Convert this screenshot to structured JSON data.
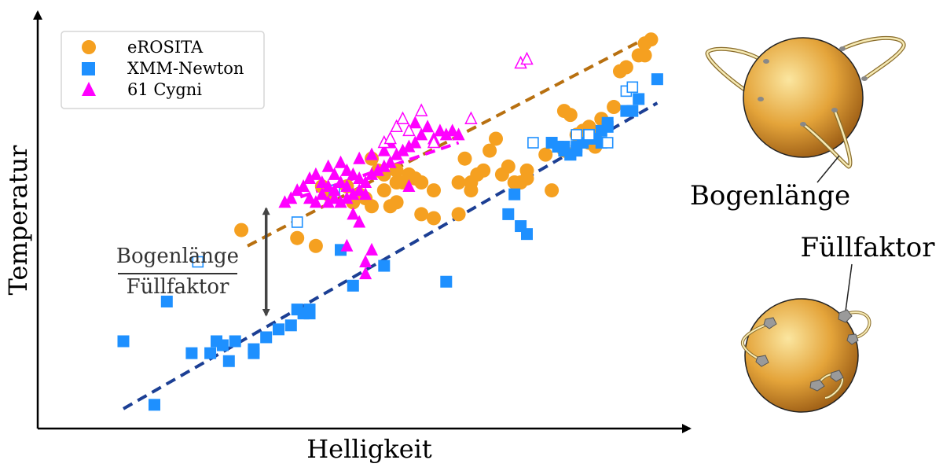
{
  "chart_data": {
    "type": "scatter",
    "title": "",
    "xlabel": "Helligkeit",
    "ylabel": "Temperatur",
    "axis_ticks": "none",
    "xlim": [
      0,
      100
    ],
    "ylim": [
      0,
      100
    ],
    "grid": false,
    "legend": {
      "placement": "top-left",
      "entries": [
        "eROSITA",
        "XMM-Newton",
        "61 Cygni"
      ]
    },
    "series": [
      {
        "name": "eROSITA",
        "marker": "circle",
        "color": "#f5a020",
        "points": [
          [
            29,
            48
          ],
          [
            38,
            46
          ],
          [
            41,
            44
          ],
          [
            42,
            59
          ],
          [
            43,
            57
          ],
          [
            46,
            59
          ],
          [
            47,
            55
          ],
          [
            48,
            57
          ],
          [
            49,
            56
          ],
          [
            50,
            54
          ],
          [
            50,
            66
          ],
          [
            51,
            63
          ],
          [
            52,
            62
          ],
          [
            52,
            58
          ],
          [
            53,
            54
          ],
          [
            54,
            55
          ],
          [
            54,
            60
          ],
          [
            54,
            63
          ],
          [
            55,
            60
          ],
          [
            56,
            62
          ],
          [
            57,
            61
          ],
          [
            58,
            52
          ],
          [
            58,
            60
          ],
          [
            60,
            58
          ],
          [
            60,
            51
          ],
          [
            64,
            52
          ],
          [
            64,
            60
          ],
          [
            65,
            66
          ],
          [
            66,
            60
          ],
          [
            66,
            58
          ],
          [
            67,
            62
          ],
          [
            68,
            63
          ],
          [
            69,
            68
          ],
          [
            70,
            71
          ],
          [
            71,
            62
          ],
          [
            72,
            64
          ],
          [
            73,
            60
          ],
          [
            74,
            60
          ],
          [
            75,
            61
          ],
          [
            75,
            63
          ],
          [
            78,
            67
          ],
          [
            79,
            58
          ],
          [
            81,
            68
          ],
          [
            81,
            78
          ],
          [
            82,
            77
          ],
          [
            83,
            72
          ],
          [
            84,
            73
          ],
          [
            85,
            70
          ],
          [
            85,
            74
          ],
          [
            86,
            69
          ],
          [
            86,
            72
          ],
          [
            87,
            76
          ],
          [
            89,
            79
          ],
          [
            90,
            88
          ],
          [
            91,
            89
          ],
          [
            93,
            92
          ],
          [
            94,
            92
          ],
          [
            94,
            95
          ],
          [
            95,
            96
          ]
        ]
      },
      {
        "name": "XMM-Newton",
        "marker": "square",
        "color": "#1e90ff",
        "points": [
          [
            10,
            20
          ],
          [
            15,
            4
          ],
          [
            17,
            30
          ],
          [
            21,
            17
          ],
          [
            24,
            17
          ],
          [
            25,
            20
          ],
          [
            26,
            19
          ],
          [
            27,
            15
          ],
          [
            28,
            20
          ],
          [
            31,
            18
          ],
          [
            31,
            17
          ],
          [
            33,
            21
          ],
          [
            35,
            23
          ],
          [
            37,
            24
          ],
          [
            38,
            28
          ],
          [
            39,
            27
          ],
          [
            40,
            28
          ],
          [
            40,
            27
          ],
          [
            45,
            43
          ],
          [
            47,
            34
          ],
          [
            52,
            39
          ],
          [
            62,
            35
          ],
          [
            72,
            52
          ],
          [
            73,
            57
          ],
          [
            74,
            49
          ],
          [
            75,
            47
          ],
          [
            79,
            70
          ],
          [
            80,
            69
          ],
          [
            81,
            69
          ],
          [
            81,
            68
          ],
          [
            82,
            67
          ],
          [
            82,
            67
          ],
          [
            83,
            68
          ],
          [
            83,
            69
          ],
          [
            84,
            70
          ],
          [
            84,
            70
          ],
          [
            85,
            71
          ],
          [
            85,
            72
          ],
          [
            86,
            71
          ],
          [
            87,
            70
          ],
          [
            87,
            73
          ],
          [
            88,
            74
          ],
          [
            88,
            75
          ],
          [
            91,
            78
          ],
          [
            92,
            78
          ],
          [
            93,
            81
          ],
          [
            96,
            86
          ]
        ]
      },
      {
        "name": "XMM-Newton (offen)",
        "marker": "square-open",
        "color": "#1e90ff",
        "points": [
          [
            22,
            40
          ],
          [
            38,
            50
          ],
          [
            44,
            58
          ],
          [
            76,
            70
          ],
          [
            83,
            72
          ],
          [
            85,
            72
          ],
          [
            88,
            70
          ],
          [
            91,
            83
          ],
          [
            92,
            84
          ]
        ]
      },
      {
        "name": "61 Cygni",
        "marker": "triangle",
        "color": "#ff00ff",
        "points": [
          [
            36,
            55
          ],
          [
            37,
            56
          ],
          [
            38,
            58
          ],
          [
            39,
            59
          ],
          [
            40,
            56
          ],
          [
            40,
            61
          ],
          [
            41,
            55
          ],
          [
            41,
            62
          ],
          [
            42,
            57
          ],
          [
            42,
            60
          ],
          [
            43,
            55
          ],
          [
            43,
            59
          ],
          [
            43,
            64
          ],
          [
            44,
            56
          ],
          [
            44,
            58
          ],
          [
            44,
            62
          ],
          [
            45,
            55
          ],
          [
            45,
            60
          ],
          [
            45,
            65
          ],
          [
            46,
            56
          ],
          [
            46,
            59
          ],
          [
            46,
            63
          ],
          [
            47,
            57
          ],
          [
            47,
            62
          ],
          [
            48,
            58
          ],
          [
            48,
            61
          ],
          [
            48,
            66
          ],
          [
            49,
            57
          ],
          [
            49,
            60
          ],
          [
            50,
            62
          ],
          [
            50,
            67
          ],
          [
            51,
            63
          ],
          [
            52,
            64
          ],
          [
            52,
            68
          ],
          [
            53,
            65
          ],
          [
            53,
            70
          ],
          [
            54,
            67
          ],
          [
            55,
            68
          ],
          [
            56,
            69
          ],
          [
            57,
            70
          ],
          [
            57,
            75
          ],
          [
            58,
            72
          ],
          [
            59,
            74
          ],
          [
            60,
            71
          ],
          [
            61,
            73
          ],
          [
            62,
            72
          ],
          [
            63,
            73
          ],
          [
            64,
            72
          ],
          [
            49,
            40
          ],
          [
            49,
            37
          ],
          [
            50,
            43
          ],
          [
            46,
            44
          ],
          [
            47,
            52
          ],
          [
            48,
            50
          ],
          [
            56,
            59
          ]
        ]
      },
      {
        "name": "61 Cygni (offen)",
        "marker": "triangle-open",
        "color": "#ff00ff",
        "points": [
          [
            52,
            70
          ],
          [
            53,
            71
          ],
          [
            54,
            74
          ],
          [
            55,
            76
          ],
          [
            56,
            73
          ],
          [
            58,
            78
          ],
          [
            60,
            70
          ],
          [
            66,
            76
          ],
          [
            74,
            90
          ],
          [
            75,
            91
          ],
          [
            80,
            105
          ]
        ]
      }
    ],
    "trendlines": [
      {
        "series": "eROSITA",
        "color": "#b87010",
        "x": [
          30,
          95
        ],
        "y": [
          44,
          97
        ]
      },
      {
        "series": "XMM-Newton",
        "color": "#1c3f94",
        "x": [
          10,
          96
        ],
        "y": [
          3,
          80
        ]
      },
      {
        "series": "61 Cygni",
        "color": "#ff00ff",
        "x": [
          36,
          64
        ],
        "y": [
          55,
          70
        ]
      }
    ],
    "annotation": {
      "numerator": "Bogenlänge",
      "denominator": "Füllfaktor",
      "arrow_x": 33,
      "arrow_y": [
        25,
        55
      ]
    }
  },
  "illustrations": {
    "top_label": "Bogenlänge",
    "bottom_label": "Füllfaktor",
    "star_colors": {
      "highlight": "#fbe6a0",
      "mid": "#e4a43a",
      "edge": "#9a5b14"
    }
  }
}
